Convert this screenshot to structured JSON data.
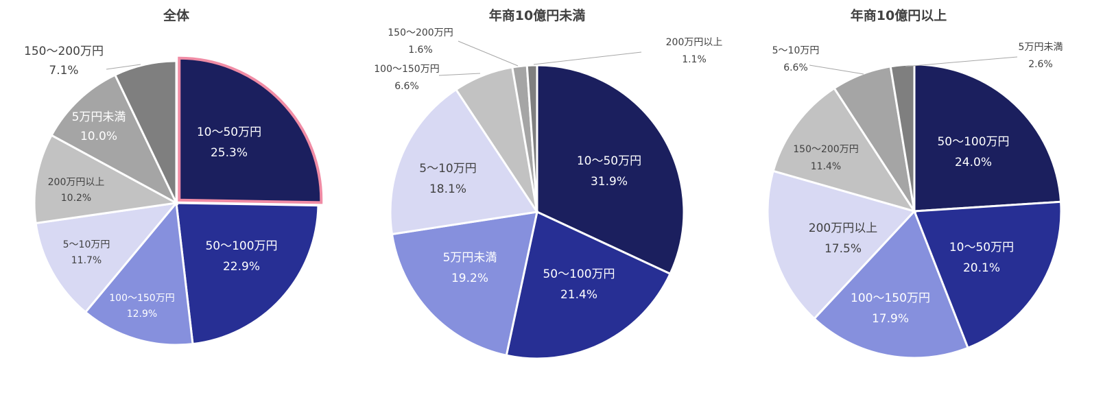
{
  "chart_data": [
    {
      "type": "pie",
      "title": "全体",
      "slices": [
        {
          "label": "10～50万円",
          "value": 25.3,
          "value_label": "25.3%",
          "color": "#1b1f5e",
          "highlight_color": "#f08ca5"
        },
        {
          "label": "50～100万円",
          "value": 22.9,
          "value_label": "22.9%",
          "color": "#272f94"
        },
        {
          "label": "100～150万円",
          "value": 12.9,
          "value_label": "12.9%",
          "color": "#8690dd"
        },
        {
          "label": "5～10万円",
          "value": 11.7,
          "value_label": "11.7%",
          "color": "#d8d9f3"
        },
        {
          "label": "200万円以上",
          "value": 10.2,
          "value_label": "10.2%",
          "color": "#c2c2c2"
        },
        {
          "label": "5万円未満",
          "value": 10.0,
          "value_label": "10.0%",
          "color": "#a5a5a5"
        },
        {
          "label": "150～200万円",
          "value": 7.1,
          "value_label": "7.1%",
          "color": "#7f7f7f"
        }
      ]
    },
    {
      "type": "pie",
      "title": "年商10億円未満",
      "slices": [
        {
          "label": "10～50万円",
          "value": 31.9,
          "value_label": "31.9%",
          "color": "#1b1f5e"
        },
        {
          "label": "50～100万円",
          "value": 21.4,
          "value_label": "21.4%",
          "color": "#272f94"
        },
        {
          "label": "5万円未満",
          "value": 19.2,
          "value_label": "19.2%",
          "color": "#8690dd"
        },
        {
          "label": "5～10万円",
          "value": 18.1,
          "value_label": "18.1%",
          "color": "#d8d9f3"
        },
        {
          "label": "100～150万円",
          "value": 6.6,
          "value_label": "6.6%",
          "color": "#c2c2c2"
        },
        {
          "label": "150～200万円",
          "value": 1.6,
          "value_label": "1.6%",
          "color": "#a5a5a5"
        },
        {
          "label": "200万円以上",
          "value": 1.1,
          "value_label": "1.1%",
          "color": "#7f7f7f"
        }
      ]
    },
    {
      "type": "pie",
      "title": "年商10億円以上",
      "slices": [
        {
          "label": "50～100万円",
          "value": 24.0,
          "value_label": "24.0%",
          "color": "#1b1f5e"
        },
        {
          "label": "10～50万円",
          "value": 20.1,
          "value_label": "20.1%",
          "color": "#272f94"
        },
        {
          "label": "100～150万円",
          "value": 17.9,
          "value_label": "17.9%",
          "color": "#8690dd"
        },
        {
          "label": "200万円以上",
          "value": 17.5,
          "value_label": "17.5%",
          "color": "#d8d9f3"
        },
        {
          "label": "150～200万円",
          "value": 11.4,
          "value_label": "11.4%",
          "color": "#c2c2c2"
        },
        {
          "label": "5～10万円",
          "value": 6.6,
          "value_label": "6.6%",
          "color": "#a5a5a5"
        },
        {
          "label": "5万円未満",
          "value": 2.6,
          "value_label": "2.6%",
          "color": "#7f7f7f"
        }
      ]
    }
  ]
}
